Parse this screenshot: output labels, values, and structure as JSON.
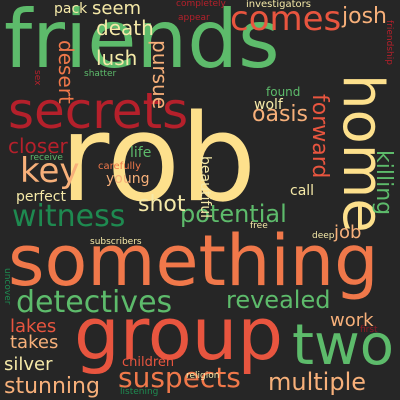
{
  "colors": {
    "background": "#262626",
    "green": "#5dbb6b",
    "dark_green": "#1e8a50",
    "red": "#b5202b",
    "dark_red": "#8c1a24",
    "orange": "#f0784a",
    "coral": "#e8553f",
    "peach": "#f7b07a",
    "yellow": "#fde08c",
    "pale_yellow": "#f5e9a8"
  },
  "words": [
    {
      "id": "friends",
      "text": "friends",
      "color": "#5dbb6b"
    },
    {
      "id": "rob",
      "text": "rob",
      "color": "#fde08c"
    },
    {
      "id": "something",
      "text": "something",
      "color": "#f0784a"
    },
    {
      "id": "group",
      "text": "group",
      "color": "#e8553f"
    },
    {
      "id": "secrets",
      "text": "secrets",
      "color": "#b5202b"
    },
    {
      "id": "home",
      "text": "home",
      "color": "#fde08c"
    },
    {
      "id": "two",
      "text": "two",
      "color": "#5dbb6b"
    },
    {
      "id": "comes",
      "text": "comes",
      "color": "#e8553f"
    },
    {
      "id": "detectives",
      "text": "detectives",
      "color": "#5dbb6b"
    },
    {
      "id": "witness",
      "text": "witness",
      "color": "#1e8a50"
    },
    {
      "id": "key",
      "text": "key",
      "color": "#f7b07a"
    },
    {
      "id": "suspects",
      "text": "suspects",
      "color": "#f0784a"
    },
    {
      "id": "potential",
      "text": "potential",
      "color": "#5dbb6b"
    },
    {
      "id": "revealed",
      "text": "revealed",
      "color": "#5dbb6b"
    },
    {
      "id": "multiple",
      "text": "multiple",
      "color": "#f7b07a"
    },
    {
      "id": "stunning",
      "text": "stunning",
      "color": "#f7b07a"
    },
    {
      "id": "killing",
      "text": "killing",
      "color": "#5dbb6b"
    },
    {
      "id": "forward",
      "text": "forward",
      "color": "#e8553f"
    },
    {
      "id": "closer",
      "text": "closer",
      "color": "#b5202b"
    },
    {
      "id": "shot",
      "text": "shot",
      "color": "#f5e9a8"
    },
    {
      "id": "death",
      "text": "death",
      "color": "#f5e9a8"
    },
    {
      "id": "josh",
      "text": "josh",
      "color": "#f7b07a"
    },
    {
      "id": "oasis",
      "text": "oasis",
      "color": "#f7b07a"
    },
    {
      "id": "lush",
      "text": "lush",
      "color": "#f5e9a8"
    },
    {
      "id": "pursue",
      "text": "pursue",
      "color": "#f7b07a"
    },
    {
      "id": "seem",
      "text": "seem",
      "color": "#f5e9a8"
    },
    {
      "id": "desert",
      "text": "desert",
      "color": "#f0784a"
    },
    {
      "id": "work",
      "text": "work",
      "color": "#f7b07a"
    },
    {
      "id": "takes",
      "text": "takes",
      "color": "#f7b07a"
    },
    {
      "id": "lakes",
      "text": "lakes",
      "color": "#e8553f"
    },
    {
      "id": "silver",
      "text": "silver",
      "color": "#f5e9a8"
    },
    {
      "id": "job",
      "text": "job",
      "color": "#f7b07a"
    },
    {
      "id": "pack",
      "text": "pack",
      "color": "#f5e9a8"
    },
    {
      "id": "wolf",
      "text": "wolf",
      "color": "#f5e9a8"
    },
    {
      "id": "found",
      "text": "found",
      "color": "#5dbb6b"
    },
    {
      "id": "life",
      "text": "life",
      "color": "#5dbb6b"
    },
    {
      "id": "young",
      "text": "young",
      "color": "#f7b07a"
    },
    {
      "id": "perfect",
      "text": "perfect",
      "color": "#f5e9a8"
    },
    {
      "id": "beautiful",
      "text": "beautiful",
      "color": "#f5e9a8"
    },
    {
      "id": "call",
      "text": "call",
      "color": "#f5e9a8"
    },
    {
      "id": "children",
      "text": "children",
      "color": "#e8553f"
    },
    {
      "id": "carefully",
      "text": "carefully",
      "color": "#f0784a"
    },
    {
      "id": "receive",
      "text": "receive",
      "color": "#5dbb6b"
    },
    {
      "id": "investigators",
      "text": "investigators",
      "color": "#f5e9a8"
    },
    {
      "id": "completely",
      "text": "completely",
      "color": "#b5202b"
    },
    {
      "id": "appear",
      "text": "appear",
      "color": "#b5202b"
    },
    {
      "id": "shatter",
      "text": "shatter",
      "color": "#5dbb6b"
    },
    {
      "id": "friendship",
      "text": "friendship",
      "color": "#b5202b"
    },
    {
      "id": "sex",
      "text": "sex",
      "color": "#b5202b"
    },
    {
      "id": "subscribers",
      "text": "subscribers",
      "color": "#f5e9a8"
    },
    {
      "id": "uncover",
      "text": "uncover",
      "color": "#1e8a50"
    },
    {
      "id": "free",
      "text": "free",
      "color": "#f5e9a8"
    },
    {
      "id": "deep",
      "text": "deep",
      "color": "#f5e9a8"
    },
    {
      "id": "religion",
      "text": "religion",
      "color": "#f5e9a8"
    },
    {
      "id": "listening",
      "text": "listening",
      "color": "#1e8a50"
    },
    {
      "id": "first",
      "text": "first",
      "color": "#8c1a24"
    }
  ]
}
